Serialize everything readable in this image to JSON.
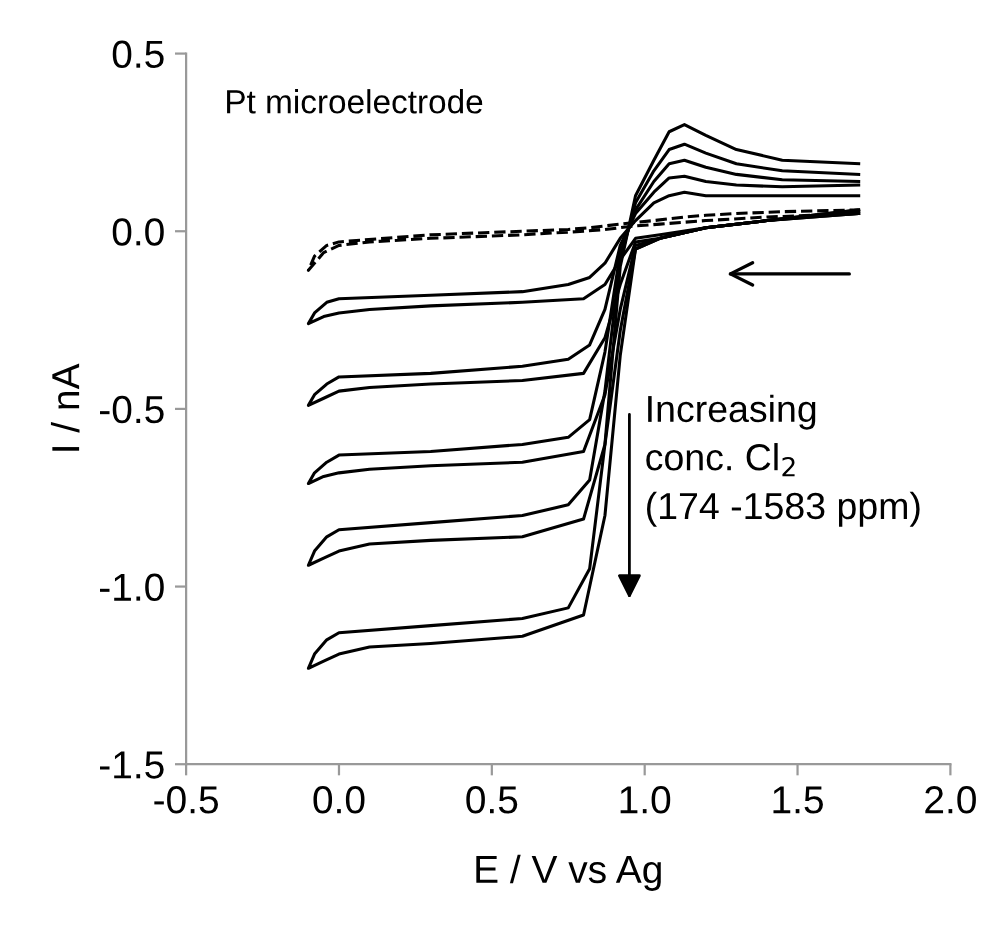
{
  "chart_data": {
    "type": "line",
    "xlabel": "E / V vs Ag",
    "ylabel": "I / nA",
    "x": [
      1.7,
      1.4,
      1.2,
      1.05,
      0.97,
      0.92,
      0.87,
      0.8,
      0.6,
      0.3,
      0.1,
      0.0,
      -0.05,
      -0.1,
      -0.08,
      -0.04,
      0.0,
      0.3,
      0.6,
      0.75,
      0.82,
      0.87,
      0.92,
      0.97,
      1.03,
      1.08,
      1.13,
      1.2,
      1.3,
      1.45,
      1.7
    ],
    "series": [
      {
        "color": "#000000",
        "line_style": "dashed",
        "values": [
          0.05,
          0.04,
          0.03,
          0.02,
          0.015,
          0.01,
          0.005,
          0.0,
          -0.01,
          -0.02,
          -0.03,
          -0.04,
          -0.06,
          -0.11,
          -0.07,
          -0.04,
          -0.03,
          -0.01,
          0.0,
          0.005,
          0.01,
          0.015,
          0.02,
          0.025,
          0.03,
          0.035,
          0.04,
          0.045,
          0.05,
          0.055,
          0.06
        ]
      },
      {
        "color": "#000000",
        "line_style": "solid",
        "values": [
          0.05,
          0.03,
          0.01,
          -0.01,
          -0.02,
          -0.08,
          -0.15,
          -0.19,
          -0.2,
          -0.21,
          -0.22,
          -0.23,
          -0.24,
          -0.26,
          -0.23,
          -0.2,
          -0.19,
          -0.18,
          -0.17,
          -0.15,
          -0.13,
          -0.09,
          -0.02,
          0.03,
          0.08,
          0.1,
          0.11,
          0.1,
          0.1,
          0.1,
          0.1
        ]
      },
      {
        "color": "#000000",
        "line_style": "solid",
        "values": [
          0.05,
          0.03,
          0.01,
          -0.02,
          -0.03,
          -0.15,
          -0.3,
          -0.4,
          -0.42,
          -0.43,
          -0.44,
          -0.45,
          -0.47,
          -0.49,
          -0.46,
          -0.43,
          -0.41,
          -0.4,
          -0.38,
          -0.36,
          -0.32,
          -0.22,
          -0.04,
          0.05,
          0.11,
          0.15,
          0.155,
          0.14,
          0.13,
          0.125,
          0.13
        ]
      },
      {
        "color": "#000000",
        "line_style": "solid",
        "values": [
          0.055,
          0.03,
          0.01,
          -0.02,
          -0.04,
          -0.22,
          -0.46,
          -0.62,
          -0.65,
          -0.66,
          -0.67,
          -0.68,
          -0.69,
          -0.71,
          -0.68,
          -0.65,
          -0.63,
          -0.62,
          -0.6,
          -0.58,
          -0.53,
          -0.34,
          -0.06,
          0.06,
          0.14,
          0.19,
          0.2,
          0.18,
          0.16,
          0.145,
          0.14
        ]
      },
      {
        "color": "#000000",
        "line_style": "solid",
        "values": [
          0.06,
          0.03,
          0.01,
          -0.02,
          -0.05,
          -0.28,
          -0.6,
          -0.81,
          -0.86,
          -0.87,
          -0.88,
          -0.9,
          -0.92,
          -0.94,
          -0.9,
          -0.86,
          -0.84,
          -0.82,
          -0.8,
          -0.77,
          -0.7,
          -0.45,
          -0.08,
          0.08,
          0.17,
          0.23,
          0.245,
          0.22,
          0.19,
          0.17,
          0.16
        ]
      },
      {
        "color": "#000000",
        "line_style": "solid",
        "values": [
          0.06,
          0.03,
          0.01,
          -0.02,
          -0.05,
          -0.35,
          -0.8,
          -1.08,
          -1.14,
          -1.16,
          -1.17,
          -1.19,
          -1.21,
          -1.23,
          -1.19,
          -1.15,
          -1.13,
          -1.11,
          -1.09,
          -1.06,
          -0.95,
          -0.6,
          -0.1,
          0.1,
          0.2,
          0.28,
          0.3,
          0.27,
          0.23,
          0.2,
          0.19
        ]
      }
    ],
    "xlim": [
      -0.5,
      2.0
    ],
    "xticks": [
      -0.5,
      {
        "value": 0,
        "label": "0.0"
      },
      0.5,
      {
        "value": 1,
        "label": "1.0"
      },
      1.5,
      {
        "value": 2,
        "label": "2.0"
      }
    ],
    "ylim": [
      -1.5,
      0.5
    ],
    "yticks": [
      -1.5,
      {
        "value": -1,
        "label": "-1.0"
      },
      -0.5,
      {
        "value": 0,
        "label": "0.0"
      },
      0.5
    ],
    "grid": false,
    "legend": false,
    "annotations": [
      "Pt microelectrode",
      "Increasing\nconc. Cl$_{2}$\n(174 -1583 ppm)"
    ]
  }
}
